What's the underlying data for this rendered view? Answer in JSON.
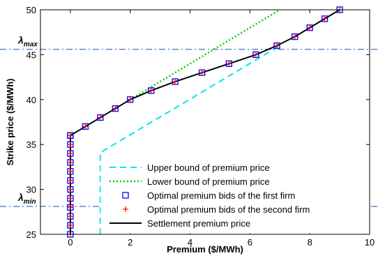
{
  "chart_data": {
    "type": "line",
    "xlabel": "Premium ($/MWh)",
    "ylabel": "Strike price ($/MWh)",
    "xlim": [
      -1,
      10
    ],
    "ylim": [
      25,
      50
    ],
    "xticks": [
      0,
      2,
      4,
      6,
      8,
      10
    ],
    "yticks": [
      25,
      30,
      35,
      40,
      45,
      50
    ],
    "grid": false,
    "legend_position": "bottom-right",
    "reference_lines": [
      {
        "label_base": "λ",
        "label_sub": "max",
        "y": 45.6,
        "color": "#4f81bd"
      },
      {
        "label_base": "λ",
        "label_sub": "min",
        "y": 28.1,
        "color": "#4f81bd"
      }
    ],
    "series": [
      {
        "name": "Upper bound of premium price",
        "style": "dashed",
        "color": "#00e5ee",
        "x": [
          1,
          1,
          7
        ],
        "y": [
          25,
          34.1,
          46
        ]
      },
      {
        "name": "Lower bound of premium price",
        "style": "dotted",
        "color": "#00cc00",
        "x": [
          2,
          7
        ],
        "y": [
          40,
          50
        ]
      },
      {
        "name": "Optimal premium bids of the first firm",
        "style": "square-marker",
        "color": "#0000ff",
        "x": [
          0,
          0,
          0,
          0,
          0,
          0,
          0,
          0,
          0,
          0,
          0,
          0,
          0,
          0.5,
          1.0,
          1.5,
          2.0,
          2.7,
          3.5,
          4.4,
          5.3,
          6.2,
          6.9,
          7.5,
          8.0,
          8.5,
          9.0
        ],
        "y": [
          25,
          26,
          27,
          28,
          29,
          30,
          31,
          32,
          33,
          34,
          35,
          36,
          36,
          37,
          38,
          39,
          40,
          41,
          42,
          43,
          44,
          45,
          46,
          47,
          48,
          49,
          50
        ]
      },
      {
        "name": "Optimal premium bids of the second firm",
        "style": "plus-marker",
        "color": "#ff0000",
        "x": [
          0,
          0,
          0,
          0,
          0,
          0,
          0,
          0,
          0,
          0,
          0,
          0,
          0,
          0.5,
          1.0,
          1.5,
          2.0,
          2.7,
          3.5,
          4.4,
          5.3,
          6.2,
          6.9,
          7.5,
          8.0,
          8.5,
          9.0
        ],
        "y": [
          25,
          26,
          27,
          28,
          29,
          30,
          31,
          32,
          33,
          34,
          35,
          36,
          36,
          37,
          38,
          39,
          40,
          41,
          42,
          43,
          44,
          45,
          46,
          47,
          48,
          49,
          50
        ]
      },
      {
        "name": "Settlement premium price",
        "style": "solid",
        "color": "#000000",
        "x": [
          0,
          0,
          0.5,
          1.0,
          1.5,
          2.0,
          2.7,
          3.5,
          4.4,
          5.3,
          6.2,
          6.9,
          7.5,
          8.0,
          8.5,
          9.0
        ],
        "y": [
          25,
          36,
          37,
          38,
          39,
          40,
          41,
          42,
          43,
          44,
          45,
          46,
          47,
          48,
          49,
          50
        ]
      }
    ]
  }
}
